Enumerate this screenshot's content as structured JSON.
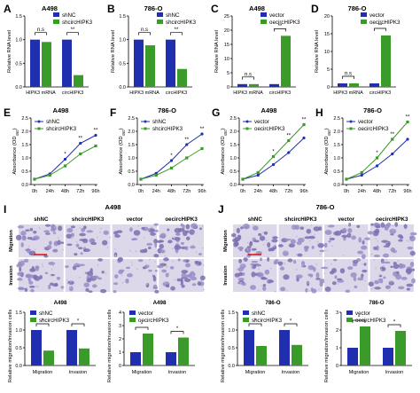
{
  "colors": {
    "blue": "#1f2fb0",
    "green": "#3a9a2a",
    "bracket": "#000000"
  },
  "rna_panels": [
    {
      "letter": "A",
      "title": "A498",
      "ylabel": "Relative RNA level",
      "ylim": [
        0,
        1.5
      ],
      "ticks": [
        "0.0",
        "0.5",
        "1.0",
        "1.5"
      ],
      "legend": [
        "shNC",
        "shcircHIPK3"
      ],
      "categories": [
        "HIPK3 mRNA",
        "circHIPK3"
      ],
      "series": [
        {
          "name": "shNC",
          "values": [
            1.0,
            1.0
          ]
        },
        {
          "name": "shcircHIPK3",
          "values": [
            0.95,
            0.25
          ]
        }
      ],
      "sig": [
        "n.s",
        "**"
      ]
    },
    {
      "letter": "B",
      "title": "786-O",
      "ylabel": "Relative RNA level",
      "ylim": [
        0,
        1.5
      ],
      "ticks": [
        "0.0",
        "0.5",
        "1.0",
        "1.5"
      ],
      "legend": [
        "shNC",
        "shcircHIPK3"
      ],
      "categories": [
        "HIPK3 mRNA",
        "circHIPK3"
      ],
      "series": [
        {
          "name": "shNC",
          "values": [
            1.0,
            1.0
          ]
        },
        {
          "name": "shcircHIPK3",
          "values": [
            0.88,
            0.38
          ]
        }
      ],
      "sig": [
        "n.s",
        "**"
      ]
    },
    {
      "letter": "C",
      "title": "A498",
      "ylabel": "Relative RNA level",
      "ylim": [
        0,
        25
      ],
      "ticks": [
        "0",
        "5",
        "10",
        "15",
        "20",
        "25"
      ],
      "legend": [
        "vector",
        "oecircHIPK3"
      ],
      "categories": [
        "HIPK3 mRNA",
        "circHIPK3"
      ],
      "series": [
        {
          "name": "vector",
          "values": [
            1.0,
            1.0
          ]
        },
        {
          "name": "oecircHIPK3",
          "values": [
            1.0,
            18.0
          ]
        }
      ],
      "sig": [
        "n.s",
        "**"
      ]
    },
    {
      "letter": "D",
      "title": "786-O",
      "ylabel": "Relative RNA level",
      "ylim": [
        0,
        20
      ],
      "ticks": [
        "0",
        "5",
        "10",
        "15",
        "20"
      ],
      "legend": [
        "vector",
        "oecircHIPK3"
      ],
      "categories": [
        "HIPK3 mRNA",
        "circHIPK3"
      ],
      "series": [
        {
          "name": "vector",
          "values": [
            1.0,
            1.0
          ]
        },
        {
          "name": "oecircHIPK3",
          "values": [
            1.0,
            14.5
          ]
        }
      ],
      "sig": [
        "n.s",
        "**"
      ]
    }
  ],
  "growth_panels": [
    {
      "letter": "E",
      "title": "A498",
      "ylabel": "Absorbance (OD450)",
      "ylim": [
        0,
        2.5
      ],
      "ticks": [
        "0.0",
        "0.5",
        "1.0",
        "1.5",
        "2.0",
        "2.5"
      ],
      "x": [
        "0h",
        "24h",
        "48h",
        "72h",
        "96h"
      ],
      "legend": [
        "shNC",
        "shcircHIPK3"
      ],
      "series": [
        {
          "name": "shNC",
          "values": [
            0.2,
            0.4,
            0.95,
            1.55,
            1.85
          ]
        },
        {
          "name": "shcircHIPK3",
          "values": [
            0.2,
            0.35,
            0.7,
            1.15,
            1.45
          ]
        }
      ],
      "sig": [
        "",
        "",
        "*",
        "**",
        "**"
      ]
    },
    {
      "letter": "F",
      "title": "786-O",
      "ylabel": "Absorbance (OD450)",
      "ylim": [
        0,
        2.5
      ],
      "ticks": [
        "0.0",
        "0.5",
        "1.0",
        "1.5",
        "2.0",
        "2.5"
      ],
      "x": [
        "0h",
        "24h",
        "48h",
        "72h",
        "96h"
      ],
      "legend": [
        "shNC",
        "shcircHIPK3"
      ],
      "series": [
        {
          "name": "shNC",
          "values": [
            0.2,
            0.42,
            0.9,
            1.5,
            1.9
          ]
        },
        {
          "name": "shcircHIPK3",
          "values": [
            0.2,
            0.35,
            0.62,
            1.0,
            1.35
          ]
        }
      ],
      "sig": [
        "",
        "",
        "*",
        "**",
        "**"
      ]
    },
    {
      "letter": "G",
      "title": "A498",
      "ylabel": "Absorbance (OD450)",
      "ylim": [
        0,
        2.5
      ],
      "ticks": [
        "0.0",
        "0.5",
        "1.0",
        "1.5",
        "2.0",
        "2.5"
      ],
      "x": [
        "0h",
        "24h",
        "48h",
        "72h",
        "96h"
      ],
      "legend": [
        "vector",
        "oecircHIPK3"
      ],
      "series": [
        {
          "name": "vector",
          "values": [
            0.2,
            0.35,
            0.75,
            1.2,
            1.75
          ]
        },
        {
          "name": "oecircHIPK3",
          "values": [
            0.2,
            0.45,
            1.05,
            1.65,
            2.25
          ]
        }
      ],
      "sig": [
        "",
        "",
        "*",
        "**",
        "**"
      ]
    },
    {
      "letter": "H",
      "title": "786-O",
      "ylabel": "Absorbance (OD450)",
      "ylim": [
        0,
        2.5
      ],
      "ticks": [
        "0.0",
        "0.5",
        "1.0",
        "1.5",
        "2.0",
        "2.5"
      ],
      "x": [
        "0h",
        "24h",
        "48h",
        "72h",
        "96h"
      ],
      "legend": [
        "vector",
        "oecircHIPK3"
      ],
      "series": [
        {
          "name": "vector",
          "values": [
            0.2,
            0.35,
            0.7,
            1.15,
            1.7
          ]
        },
        {
          "name": "oecircHIPK3",
          "values": [
            0.2,
            0.45,
            1.0,
            1.7,
            2.35
          ]
        }
      ],
      "sig": [
        "",
        "",
        "*",
        "**",
        "**"
      ]
    }
  ],
  "micro_panels": [
    {
      "letter": "I",
      "title": "A498",
      "columns": [
        "shNC",
        "shcircHIPK3",
        "vector",
        "oecircHIPK3"
      ],
      "rows": [
        "Migration",
        "Invasion"
      ]
    },
    {
      "letter": "J",
      "title": "786-O",
      "columns": [
        "shNC",
        "shcircHIPK3",
        "vector",
        "oecircHIPK3"
      ],
      "rows": [
        "Migration",
        "Invasion"
      ]
    }
  ],
  "quant_panels": [
    {
      "title": "A498",
      "ylabel": "Relative migration/invasion cells",
      "ylim": [
        0,
        1.5
      ],
      "ticks": [
        "0.0",
        "0.5",
        "1.0",
        "1.5"
      ],
      "legend": [
        "shNC",
        "shcircHIPK3"
      ],
      "categories": [
        "Migration",
        "Invasion"
      ],
      "series": [
        {
          "name": "shNC",
          "values": [
            1.0,
            1.0
          ]
        },
        {
          "name": "shcircHIPK3",
          "values": [
            0.42,
            0.48
          ]
        }
      ],
      "sig": [
        "*",
        "*"
      ]
    },
    {
      "title": "A498",
      "ylabel": "Relative migration/invasion cells",
      "ylim": [
        0,
        4
      ],
      "ticks": [
        "0",
        "1",
        "2",
        "3",
        "4"
      ],
      "legend": [
        "vector",
        "oecircHIPK3"
      ],
      "categories": [
        "Migration",
        "Invasion"
      ],
      "series": [
        {
          "name": "vector",
          "values": [
            1.0,
            1.0
          ]
        },
        {
          "name": "oecircHIPK3",
          "values": [
            2.4,
            2.1
          ]
        }
      ],
      "sig": [
        "*",
        "*"
      ]
    },
    {
      "title": "786-O",
      "ylabel": "Relative migration/invasion cells",
      "ylim": [
        0,
        1.5
      ],
      "ticks": [
        "0.0",
        "0.5",
        "1.0",
        "1.5"
      ],
      "legend": [
        "shNC",
        "shcircHIPK3"
      ],
      "categories": [
        "Migration",
        "Invasion"
      ],
      "series": [
        {
          "name": "shNC",
          "values": [
            1.0,
            1.0
          ]
        },
        {
          "name": "shcircHIPK3",
          "values": [
            0.55,
            0.58
          ]
        }
      ],
      "sig": [
        "*",
        "*"
      ]
    },
    {
      "title": "786-O",
      "ylabel": "Relative migration/invasion cells",
      "ylim": [
        0,
        3
      ],
      "ticks": [
        "0",
        "1",
        "2",
        "3"
      ],
      "legend": [
        "vector",
        "oecircHIPK3"
      ],
      "categories": [
        "Migration",
        "Invasion"
      ],
      "series": [
        {
          "name": "vector",
          "values": [
            1.0,
            1.0
          ]
        },
        {
          "name": "oecircHIPK3",
          "values": [
            2.2,
            1.95
          ]
        }
      ],
      "sig": [
        "*",
        "*"
      ]
    }
  ],
  "chart_data": [
    {
      "type": "bar",
      "title": "A498",
      "categories": [
        "HIPK3 mRNA",
        "circHIPK3"
      ],
      "ylabel": "Relative RNA level",
      "ylim": [
        0,
        1.5
      ],
      "series": [
        {
          "name": "shNC",
          "values": [
            1.0,
            1.0
          ]
        },
        {
          "name": "shcircHIPK3",
          "values": [
            0.95,
            0.25
          ]
        }
      ]
    },
    {
      "type": "bar",
      "title": "786-O",
      "categories": [
        "HIPK3 mRNA",
        "circHIPK3"
      ],
      "ylabel": "Relative RNA level",
      "ylim": [
        0,
        1.5
      ],
      "series": [
        {
          "name": "shNC",
          "values": [
            1.0,
            1.0
          ]
        },
        {
          "name": "shcircHIPK3",
          "values": [
            0.88,
            0.38
          ]
        }
      ]
    },
    {
      "type": "bar",
      "title": "A498",
      "categories": [
        "HIPK3 mRNA",
        "circHIPK3"
      ],
      "ylabel": "Relative RNA level",
      "ylim": [
        0,
        25
      ],
      "series": [
        {
          "name": "vector",
          "values": [
            1.0,
            1.0
          ]
        },
        {
          "name": "oecircHIPK3",
          "values": [
            1.0,
            18.0
          ]
        }
      ]
    },
    {
      "type": "bar",
      "title": "786-O",
      "categories": [
        "HIPK3 mRNA",
        "circHIPK3"
      ],
      "ylabel": "Relative RNA level",
      "ylim": [
        0,
        20
      ],
      "series": [
        {
          "name": "vector",
          "values": [
            1.0,
            1.0
          ]
        },
        {
          "name": "oecircHIPK3",
          "values": [
            1.0,
            14.5
          ]
        }
      ]
    },
    {
      "type": "line",
      "title": "A498",
      "x": [
        "0h",
        "24h",
        "48h",
        "72h",
        "96h"
      ],
      "ylim": [
        0,
        2.5
      ],
      "series": [
        {
          "name": "shNC",
          "values": [
            0.2,
            0.4,
            0.95,
            1.55,
            1.85
          ]
        },
        {
          "name": "shcircHIPK3",
          "values": [
            0.2,
            0.35,
            0.7,
            1.15,
            1.45
          ]
        }
      ]
    },
    {
      "type": "line",
      "title": "786-O",
      "x": [
        "0h",
        "24h",
        "48h",
        "72h",
        "96h"
      ],
      "ylim": [
        0,
        2.5
      ],
      "series": [
        {
          "name": "shNC",
          "values": [
            0.2,
            0.42,
            0.9,
            1.5,
            1.9
          ]
        },
        {
          "name": "shcircHIPK3",
          "values": [
            0.2,
            0.35,
            0.62,
            1.0,
            1.35
          ]
        }
      ]
    },
    {
      "type": "line",
      "title": "A498",
      "x": [
        "0h",
        "24h",
        "48h",
        "72h",
        "96h"
      ],
      "ylim": [
        0,
        2.5
      ],
      "series": [
        {
          "name": "vector",
          "values": [
            0.2,
            0.35,
            0.75,
            1.2,
            1.75
          ]
        },
        {
          "name": "oecircHIPK3",
          "values": [
            0.2,
            0.45,
            1.05,
            1.65,
            2.25
          ]
        }
      ]
    },
    {
      "type": "line",
      "title": "786-O",
      "x": [
        "0h",
        "24h",
        "48h",
        "72h",
        "96h"
      ],
      "ylim": [
        0,
        2.5
      ],
      "series": [
        {
          "name": "vector",
          "values": [
            0.2,
            0.35,
            0.7,
            1.15,
            1.7
          ]
        },
        {
          "name": "oecircHIPK3",
          "values": [
            0.2,
            0.45,
            1.0,
            1.7,
            2.35
          ]
        }
      ]
    },
    {
      "type": "bar",
      "title": "A498",
      "categories": [
        "Migration",
        "Invasion"
      ],
      "ylim": [
        0,
        1.5
      ],
      "series": [
        {
          "name": "shNC",
          "values": [
            1.0,
            1.0
          ]
        },
        {
          "name": "shcircHIPK3",
          "values": [
            0.42,
            0.48
          ]
        }
      ]
    },
    {
      "type": "bar",
      "title": "A498",
      "categories": [
        "Migration",
        "Invasion"
      ],
      "ylim": [
        0,
        4
      ],
      "series": [
        {
          "name": "vector",
          "values": [
            1.0,
            1.0
          ]
        },
        {
          "name": "oecircHIPK3",
          "values": [
            2.4,
            2.1
          ]
        }
      ]
    },
    {
      "type": "bar",
      "title": "786-O",
      "categories": [
        "Migration",
        "Invasion"
      ],
      "ylim": [
        0,
        1.5
      ],
      "series": [
        {
          "name": "shNC",
          "values": [
            1.0,
            1.0
          ]
        },
        {
          "name": "shcircHIPK3",
          "values": [
            0.55,
            0.58
          ]
        }
      ]
    },
    {
      "type": "bar",
      "title": "786-O",
      "categories": [
        "Migration",
        "Invasion"
      ],
      "ylim": [
        0,
        3
      ],
      "series": [
        {
          "name": "vector",
          "values": [
            1.0,
            1.0
          ]
        },
        {
          "name": "oecircHIPK3",
          "values": [
            2.2,
            1.95
          ]
        }
      ]
    }
  ]
}
